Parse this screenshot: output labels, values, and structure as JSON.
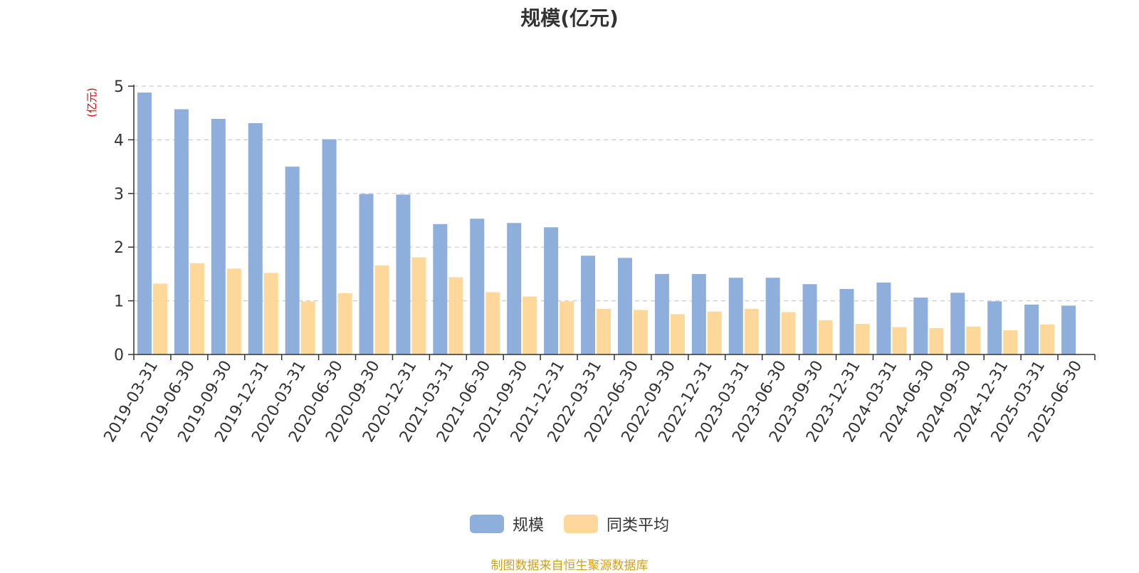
{
  "chart_data": {
    "type": "bar",
    "title": "规模(亿元)",
    "ylabel": "(亿元)",
    "ylim": [
      0,
      5
    ],
    "yticks": [
      "0",
      "1",
      "2",
      "3",
      "4",
      "5"
    ],
    "grid": true,
    "legend_position": "bottom",
    "categories": [
      "2019-03-31",
      "2019-06-30",
      "2019-09-30",
      "2019-12-31",
      "2020-03-31",
      "2020-06-30",
      "2020-09-30",
      "2020-12-31",
      "2021-03-31",
      "2021-06-30",
      "2021-09-30",
      "2021-12-31",
      "2022-03-31",
      "2022-06-30",
      "2022-09-30",
      "2022-12-31",
      "2023-03-31",
      "2023-06-30",
      "2023-09-30",
      "2023-12-31",
      "2024-03-31",
      "2024-06-30",
      "2024-09-30",
      "2024-12-31",
      "2025-03-31",
      "2025-06-30"
    ],
    "series": [
      {
        "name": "规模",
        "color": "#8eaedb",
        "values": [
          4.88,
          4.57,
          4.39,
          4.31,
          3.5,
          4.01,
          2.99,
          2.98,
          2.43,
          2.53,
          2.45,
          2.37,
          1.84,
          1.8,
          1.5,
          1.5,
          1.43,
          1.43,
          1.31,
          1.22,
          1.34,
          1.06,
          1.15,
          0.99,
          0.93,
          0.91
        ]
      },
      {
        "name": "同类平均",
        "color": "#fdd89a",
        "values": [
          1.32,
          1.7,
          1.6,
          1.52,
          0.99,
          1.14,
          1.66,
          1.81,
          1.44,
          1.16,
          1.08,
          0.99,
          0.85,
          0.83,
          0.75,
          0.8,
          0.85,
          0.79,
          0.64,
          0.57,
          0.51,
          0.49,
          0.52,
          0.45,
          0.56,
          null
        ]
      }
    ]
  },
  "footer": {
    "source": "制图数据来自恒生聚源数据库"
  }
}
